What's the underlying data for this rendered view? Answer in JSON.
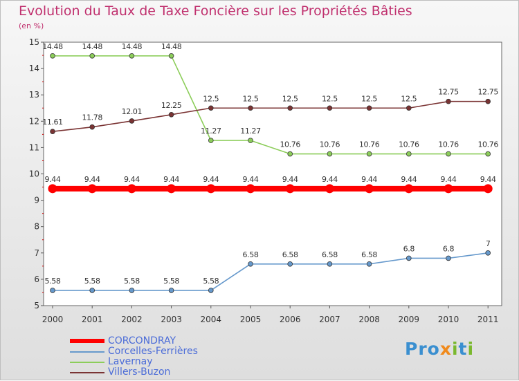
{
  "chart_data": {
    "type": "line",
    "title": "Evolution du Taux de Taxe Foncière sur les Propriétés Bâties",
    "subtitle": "(en %)",
    "x": [
      "2000",
      "2001",
      "2002",
      "2003",
      "2004",
      "2005",
      "2006",
      "2007",
      "2008",
      "2009",
      "2010",
      "2011"
    ],
    "yticks": [
      "5",
      "6",
      "7",
      "8",
      "9",
      "10",
      "11",
      "12",
      "13",
      "14",
      "15"
    ],
    "ylim": [
      5,
      15
    ],
    "grid": false,
    "series": [
      {
        "name": "CORCONDRAY",
        "color": "#ff0000",
        "emphasis": true,
        "values": [
          9.44,
          9.44,
          9.44,
          9.44,
          9.44,
          9.44,
          9.44,
          9.44,
          9.44,
          9.44,
          9.44,
          9.44
        ],
        "labels": [
          "9.44",
          "9.44",
          "9.44",
          "9.44",
          "9.44",
          "9.44",
          "9.44",
          "9.44",
          "9.44",
          "9.44",
          "9.44",
          "9.44"
        ]
      },
      {
        "name": "Corcelles-Ferrières",
        "color": "#6699cc",
        "emphasis": false,
        "values": [
          5.58,
          5.58,
          5.58,
          5.58,
          5.58,
          6.58,
          6.58,
          6.58,
          6.58,
          6.8,
          6.8,
          7
        ],
        "labels": [
          "5.58",
          "5.58",
          "5.58",
          "5.58",
          "5.58",
          "6.58",
          "6.58",
          "6.58",
          "6.58",
          "6.8",
          "6.8",
          "7"
        ]
      },
      {
        "name": "Lavernay",
        "color": "#8ccd5a",
        "emphasis": false,
        "values": [
          14.48,
          14.48,
          14.48,
          14.48,
          11.27,
          11.27,
          10.76,
          10.76,
          10.76,
          10.76,
          10.76,
          10.76
        ],
        "labels": [
          "14.48",
          "14.48",
          "14.48",
          "14.48",
          "11.27",
          "11.27",
          "10.76",
          "10.76",
          "10.76",
          "10.76",
          "10.76",
          "10.76"
        ]
      },
      {
        "name": "Villers-Buzon",
        "color": "#7a3333",
        "emphasis": false,
        "values": [
          11.61,
          11.78,
          12.01,
          12.25,
          12.5,
          12.5,
          12.5,
          12.5,
          12.5,
          12.5,
          12.75,
          12.75
        ],
        "labels": [
          "11.61",
          "11.78",
          "12.01",
          "12.25",
          "12.5",
          "12.5",
          "12.5",
          "12.5",
          "12.5",
          "12.5",
          "12.75",
          "12.75"
        ]
      }
    ]
  },
  "legend": {
    "items": [
      {
        "label": "CORCONDRAY",
        "color": "#ff0000"
      },
      {
        "label": "Corcelles-Ferrières",
        "color": "#6699cc"
      },
      {
        "label": "Lavernay",
        "color": "#8ccd5a"
      },
      {
        "label": "Villers-Buzon",
        "color": "#7a3333"
      }
    ]
  },
  "logo": {
    "p1": "Pro",
    "x": "x",
    "p2": "i",
    "p3": "t",
    "p4": "i"
  }
}
